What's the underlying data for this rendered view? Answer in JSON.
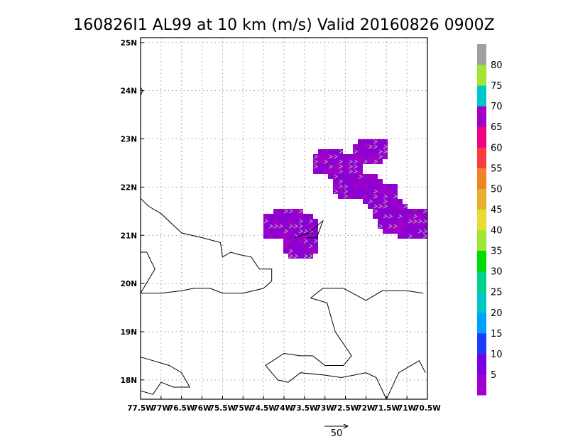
{
  "chart_data": {
    "type": "heatmap",
    "title": "160826I1 AL99 at 10 km (m/s) Valid 20160826 0900Z",
    "x_ticks": [
      "77.5W",
      "77W",
      "76.5W",
      "76W",
      "75.5W",
      "75W",
      "74.5W",
      "74W",
      "73.5W",
      "73W",
      "72.5W",
      "72W",
      "71.5W",
      "71W",
      "70.5W"
    ],
    "x_values": [
      -77.5,
      -77,
      -76.5,
      -76,
      -75.5,
      -75,
      -74.5,
      -74,
      -73.5,
      -73,
      -72.5,
      -72,
      -71.5,
      -71,
      -70.5
    ],
    "y_ticks": [
      "18N",
      "19N",
      "20N",
      "21N",
      "22N",
      "23N",
      "24N",
      "25N"
    ],
    "y_values": [
      18,
      19,
      20,
      21,
      22,
      23,
      24,
      25
    ],
    "xlim": [
      -77.5,
      -70.5
    ],
    "ylim": [
      17.6,
      25.1
    ],
    "grid": true,
    "colorbar": {
      "labels": [
        "5",
        "10",
        "15",
        "20",
        "25",
        "30",
        "35",
        "40",
        "45",
        "50",
        "55",
        "60",
        "65",
        "70",
        "75",
        "80"
      ],
      "colors": [
        "#a000d0",
        "#7a00e0",
        "#1e3cff",
        "#00a0ff",
        "#00c8c8",
        "#00d28c",
        "#00dc00",
        "#a0e632",
        "#e6dc32",
        "#e6af2d",
        "#f08228",
        "#fa3c3c",
        "#f00082",
        "#a000c8",
        "#00c8c8",
        "#a0e632",
        "#a0a0a0"
      ]
    },
    "wind_regions": [
      {
        "lon": -74.1,
        "lat": 21.2,
        "value": 3
      },
      {
        "lon": -73.9,
        "lat": 21.3,
        "value": 3
      },
      {
        "lon": -73.7,
        "lat": 21.2,
        "value": 3
      },
      {
        "lon": -73.6,
        "lat": 20.85,
        "value": 3
      },
      {
        "lon": -72.9,
        "lat": 22.55,
        "value": 3
      },
      {
        "lon": -72.6,
        "lat": 22.5,
        "value": 3
      },
      {
        "lon": -72.4,
        "lat": 22.1,
        "value": 3
      },
      {
        "lon": -72.1,
        "lat": 22.05,
        "value": 3
      },
      {
        "lon": -71.9,
        "lat": 22.8,
        "value": 3
      },
      {
        "lon": -71.7,
        "lat": 21.9,
        "value": 3
      },
      {
        "lon": -71.5,
        "lat": 21.5,
        "value": 3
      },
      {
        "lon": -71.3,
        "lat": 21.3,
        "value": 3
      },
      {
        "lon": -71.0,
        "lat": 21.25,
        "value": 3
      },
      {
        "lon": -70.8,
        "lat": 21.3,
        "value": 3
      }
    ],
    "reference_vector": {
      "label": "50"
    }
  }
}
